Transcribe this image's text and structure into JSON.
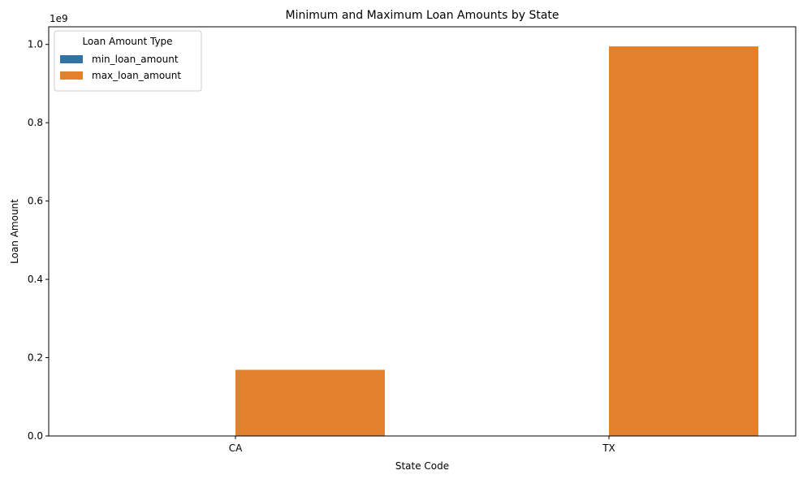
{
  "chart_data": {
    "type": "bar",
    "title": "Minimum and Maximum Loan Amounts by State",
    "xlabel": "State Code",
    "ylabel": "Loan Amount",
    "y_offset_label": "1e9",
    "categories": [
      "CA",
      "TX"
    ],
    "series": [
      {
        "name": "min_loan_amount",
        "color": "#3274a1",
        "values": [
          0,
          0
        ]
      },
      {
        "name": "max_loan_amount",
        "color": "#e1812c",
        "values": [
          169000000,
          995000000
        ]
      }
    ],
    "ylim": [
      0,
      1045000000
    ],
    "yticks": [
      0,
      200000000,
      400000000,
      600000000,
      800000000,
      1000000000
    ],
    "ytick_labels": [
      "0.0",
      "0.2",
      "0.4",
      "0.6",
      "0.8",
      "1.0"
    ],
    "legend": {
      "title": "Loan Amount Type",
      "position": "top-left"
    },
    "grid": false
  }
}
